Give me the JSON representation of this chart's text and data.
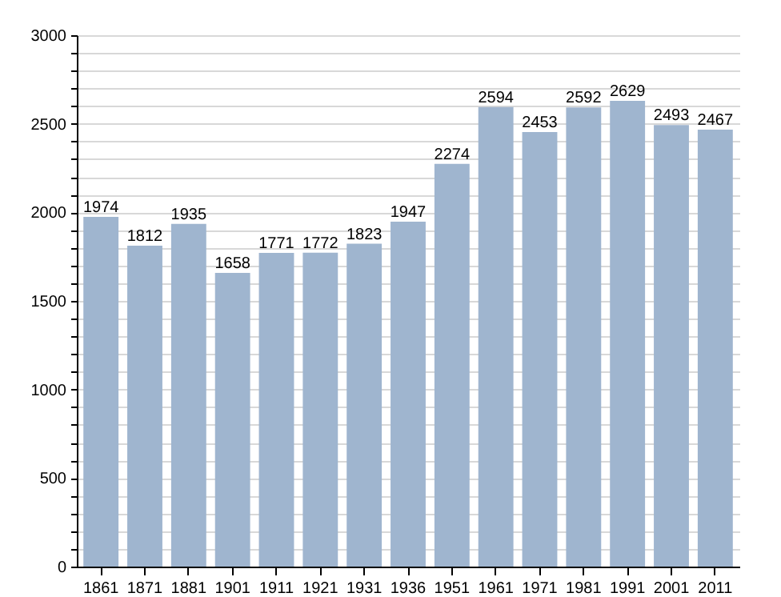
{
  "chart_data": {
    "type": "bar",
    "categories": [
      "1861",
      "1871",
      "1881",
      "1901",
      "1911",
      "1921",
      "1931",
      "1936",
      "1951",
      "1961",
      "1971",
      "1981",
      "1991",
      "2001",
      "2011"
    ],
    "values": [
      1974,
      1812,
      1935,
      1658,
      1771,
      1772,
      1823,
      1947,
      2274,
      2594,
      2453,
      2592,
      2629,
      2493,
      2467
    ],
    "color": "#9fb5cf",
    "data_labels": true,
    "grid": "y",
    "ylim": [
      0,
      3000
    ],
    "yticks": [
      0,
      {
        "value": 100,
        "label": null
      },
      {
        "value": 200,
        "label": null
      },
      {
        "value": 300,
        "label": null
      },
      {
        "value": 400,
        "label": null
      },
      500,
      {
        "value": 600,
        "label": null
      },
      {
        "value": 700,
        "label": null
      },
      {
        "value": 800,
        "label": null
      },
      {
        "value": 900,
        "label": null
      },
      1000,
      {
        "value": 1100,
        "label": null
      },
      {
        "value": 1200,
        "label": null
      },
      {
        "value": 1300,
        "label": null
      },
      {
        "value": 1400,
        "label": null
      },
      1500,
      {
        "value": 1600,
        "label": null
      },
      {
        "value": 1700,
        "label": null
      },
      {
        "value": 1800,
        "label": null
      },
      {
        "value": 1900,
        "label": null
      },
      2000,
      {
        "value": 2100,
        "label": null
      },
      {
        "value": 2200,
        "label": null
      },
      {
        "value": 2300,
        "label": null
      },
      {
        "value": 2400,
        "label": null
      },
      2500,
      {
        "value": 2600,
        "label": null
      },
      {
        "value": 2700,
        "label": null
      },
      {
        "value": 2800,
        "label": null
      },
      {
        "value": 2900,
        "label": null
      },
      3000
    ]
  }
}
